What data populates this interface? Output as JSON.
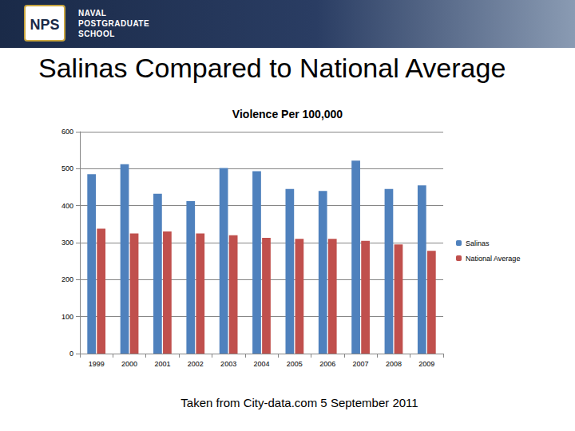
{
  "slide": {
    "title": "Salinas Compared to National Average",
    "source": "Taken from City-data.com 5 September 2011",
    "logo": {
      "badge": "NPS",
      "lines": [
        "NAVAL",
        "POSTGRADUATE",
        "SCHOOL"
      ]
    }
  },
  "chart_data": {
    "type": "bar",
    "title": "Violence Per 100,000",
    "categories": [
      "1999",
      "2000",
      "2001",
      "2002",
      "2003",
      "2004",
      "2005",
      "2006",
      "2007",
      "2008",
      "2009"
    ],
    "series": [
      {
        "name": "Salinas",
        "color": "#4f81bd",
        "values": [
          485,
          512,
          432,
          412,
          502,
          493,
          445,
          440,
          522,
          445,
          455
        ]
      },
      {
        "name": "National Average",
        "color": "#c0504d",
        "values": [
          338,
          325,
          330,
          325,
          320,
          313,
          310,
          310,
          305,
          295,
          278
        ]
      }
    ],
    "ylim": [
      0,
      600
    ],
    "yticks": [
      0,
      100,
      200,
      300,
      400,
      500,
      600
    ],
    "grid": true,
    "legend": "right"
  }
}
